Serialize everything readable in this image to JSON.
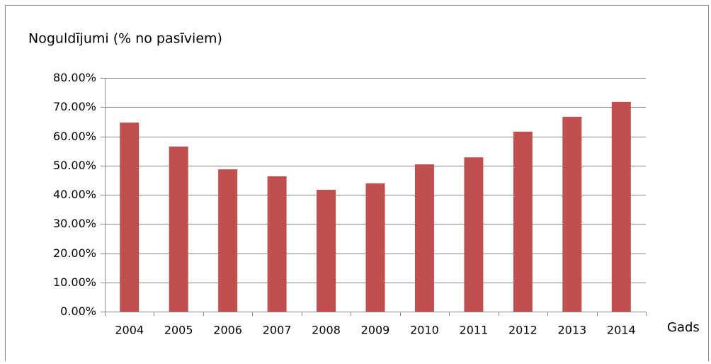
{
  "chart_data": {
    "type": "bar",
    "title": "Noguldījumi (% no pasīviem)",
    "x_label": "Gads",
    "categories": [
      "2004",
      "2005",
      "2006",
      "2007",
      "2008",
      "2009",
      "2010",
      "2011",
      "2012",
      "2013",
      "2014"
    ],
    "values": [
      64.7,
      56.5,
      48.7,
      46.3,
      41.7,
      43.9,
      50.4,
      52.8,
      61.6,
      66.7,
      71.8
    ],
    "color": "#c0504d",
    "ylim": [
      0,
      80
    ],
    "yticks": [
      {
        "value": 0,
        "label": "0.00%"
      },
      {
        "value": 10,
        "label": "10.00%"
      },
      {
        "value": 20,
        "label": "20.00%"
      },
      {
        "value": 30,
        "label": "30.00%"
      },
      {
        "value": 40,
        "label": "40.00%"
      },
      {
        "value": 50,
        "label": "50.00%"
      },
      {
        "value": 60,
        "label": "60.00%"
      },
      {
        "value": 70,
        "label": "70.00%"
      },
      {
        "value": 80,
        "label": "80.00%"
      }
    ],
    "grid": true
  }
}
